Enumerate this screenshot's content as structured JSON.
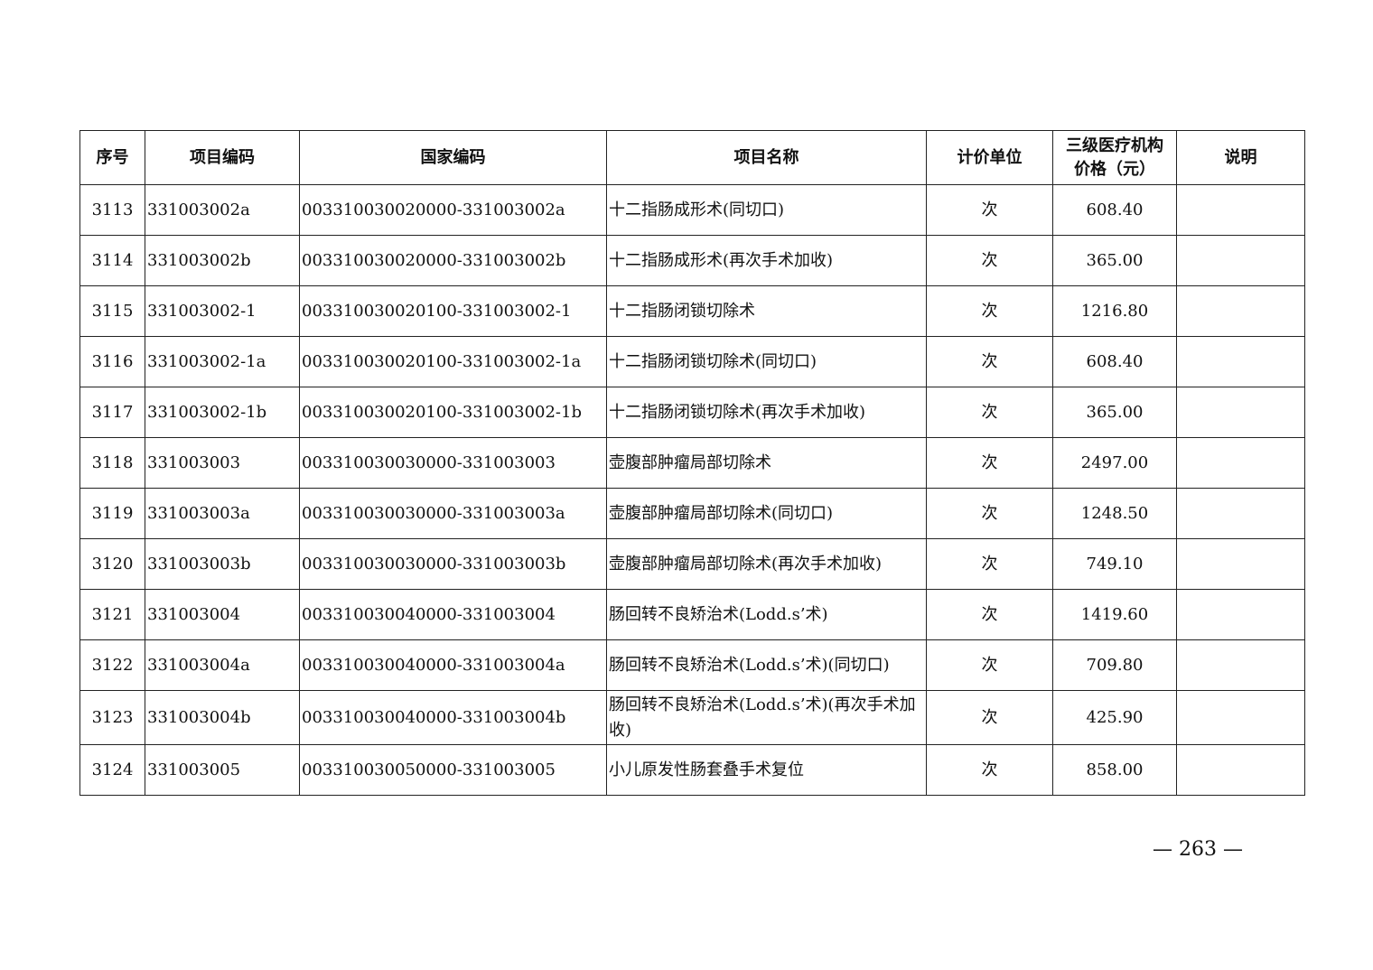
{
  "headers": [
    "序号",
    "项目编码",
    "国家编码",
    "项目名称",
    "计价单位",
    "三级医疗机构价格（元）",
    "说明"
  ],
  "header_price_line1": "三级医疗机构",
  "header_price_line2": "价格（元）",
  "rows": [
    {
      "no": "3113",
      "code": "331003002a",
      "national": "003310030020000-331003002a",
      "name": "十二指肠成形术(同切口)",
      "unit": "次",
      "price": "608.40",
      "note": ""
    },
    {
      "no": "3114",
      "code": "331003002b",
      "national": "003310030020000-331003002b",
      "name": "十二指肠成形术(再次手术加收)",
      "unit": "次",
      "price": "365.00",
      "note": ""
    },
    {
      "no": "3115",
      "code": "331003002-1",
      "national": "003310030020100-331003002-1",
      "name": "十二指肠闭锁切除术",
      "unit": "次",
      "price": "1216.80",
      "note": ""
    },
    {
      "no": "3116",
      "code": "331003002-1a",
      "national": "003310030020100-331003002-1a",
      "name": "十二指肠闭锁切除术(同切口)",
      "unit": "次",
      "price": "608.40",
      "note": ""
    },
    {
      "no": "3117",
      "code": "331003002-1b",
      "national": "003310030020100-331003002-1b",
      "name": "十二指肠闭锁切除术(再次手术加收)",
      "unit": "次",
      "price": "365.00",
      "note": ""
    },
    {
      "no": "3118",
      "code": "331003003",
      "national": "003310030030000-331003003",
      "name": "壶腹部肿瘤局部切除术",
      "unit": "次",
      "price": "2497.00",
      "note": ""
    },
    {
      "no": "3119",
      "code": "331003003a",
      "national": "003310030030000-331003003a",
      "name": "壶腹部肿瘤局部切除术(同切口)",
      "unit": "次",
      "price": "1248.50",
      "note": ""
    },
    {
      "no": "3120",
      "code": "331003003b",
      "national": "003310030030000-331003003b",
      "name": "壶腹部肿瘤局部切除术(再次手术加收)",
      "unit": "次",
      "price": "749.10",
      "note": ""
    },
    {
      "no": "3121",
      "code": "331003004",
      "national": "003310030040000-331003004",
      "name": "肠回转不良矫治术(Lodd.s’术)",
      "unit": "次",
      "price": "1419.60",
      "note": ""
    },
    {
      "no": "3122",
      "code": "331003004a",
      "national": "003310030040000-331003004a",
      "name": "肠回转不良矫治术(Lodd.s’术)(同切口)",
      "unit": "次",
      "price": "709.80",
      "note": ""
    },
    {
      "no": "3123",
      "code": "331003004b",
      "national": "003310030040000-331003004b",
      "name": "肠回转不良矫治术(Lodd.s’术)(再次手术加收)",
      "unit": "次",
      "price": "425.90",
      "note": ""
    },
    {
      "no": "3124",
      "code": "331003005",
      "national": "003310030050000-331003005",
      "name": "小儿原发性肠套叠手术复位",
      "unit": "次",
      "price": "858.00",
      "note": ""
    }
  ],
  "page_number": "— 263 —"
}
